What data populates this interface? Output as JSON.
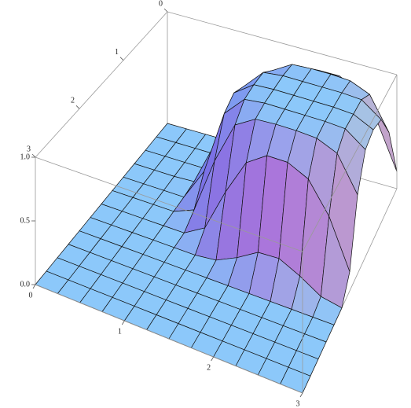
{
  "chart_data": {
    "type": "surface3d",
    "x": [
      0,
      0.25,
      0.5,
      0.75,
      1,
      1.25,
      1.5,
      1.75,
      2,
      2.25,
      2.5,
      2.75,
      3
    ],
    "y": [
      0,
      0.25,
      0.5,
      0.75,
      1,
      1.25,
      1.5,
      1.75,
      2,
      2.25,
      2.5,
      2.75,
      3
    ],
    "z": [
      [
        0,
        0,
        0,
        0,
        0,
        0.1,
        0.45,
        0.74,
        0.85,
        0.85,
        0.77,
        0.53,
        0.15
      ],
      [
        0,
        0,
        0,
        0,
        0.07,
        0.53,
        0.88,
        0.98,
        0.99,
        0.99,
        0.98,
        0.91,
        0.63
      ],
      [
        0,
        0,
        0,
        0,
        0.27,
        0.81,
        0.98,
        1,
        1,
        1,
        1,
        0.99,
        0.87
      ],
      [
        0,
        0,
        0,
        0.01,
        0.37,
        0.87,
        0.99,
        1,
        1,
        1,
        1,
        0.99,
        0.91
      ],
      [
        0,
        0,
        0,
        0,
        0.27,
        0.81,
        0.98,
        1,
        1,
        1,
        1,
        0.99,
        0.87
      ],
      [
        0,
        0,
        0,
        0,
        0.07,
        0.53,
        0.88,
        0.98,
        0.99,
        0.99,
        0.98,
        0.91,
        0.63
      ],
      [
        0,
        0,
        0,
        0,
        0,
        0.1,
        0.45,
        0.74,
        0.85,
        0.85,
        0.77,
        0.53,
        0.15
      ],
      [
        0,
        0,
        0,
        0,
        0,
        0,
        0.02,
        0.1,
        0.2,
        0.21,
        0.13,
        0.03,
        0
      ],
      [
        0,
        0,
        0,
        0,
        0,
        0,
        0,
        0,
        0,
        0,
        0,
        0,
        0
      ],
      [
        0,
        0,
        0,
        0,
        0,
        0,
        0,
        0,
        0,
        0,
        0,
        0,
        0
      ],
      [
        0,
        0,
        0,
        0,
        0,
        0,
        0,
        0,
        0,
        0,
        0,
        0,
        0
      ],
      [
        0,
        0,
        0,
        0,
        0,
        0,
        0,
        0,
        0,
        0,
        0,
        0,
        0
      ],
      [
        0,
        0,
        0,
        0,
        0,
        0,
        0,
        0,
        0,
        0,
        0,
        0,
        0
      ]
    ],
    "xlim": [
      0,
      3
    ],
    "ylim": [
      0,
      3
    ],
    "zlim": [
      0,
      1
    ],
    "xticks": [
      0,
      1,
      2,
      3
    ],
    "yticks": [
      0,
      1,
      2,
      3
    ],
    "zticks": [
      {
        "value": 0,
        "label": "0.0"
      },
      {
        "value": 0.5,
        "label": "0.5"
      },
      {
        "value": 1,
        "label": "1.0"
      }
    ],
    "mesh": true
  }
}
